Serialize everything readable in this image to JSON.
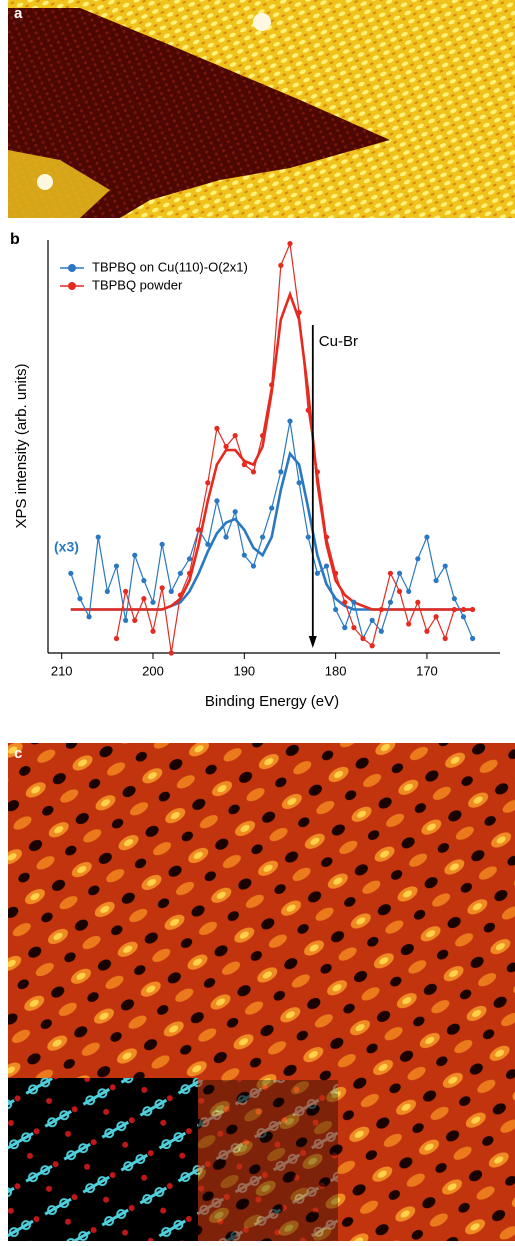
{
  "panel_labels": [
    "a",
    "b",
    "c"
  ],
  "chart_data": {
    "type": "line",
    "x_label": "Binding Energy (eV)",
    "y_label": "XPS intensity (arb. units)",
    "xlim": [
      211.5,
      162
    ],
    "ylim": [
      -12,
      102
    ],
    "xticks": [
      210,
      200,
      190,
      180,
      170
    ],
    "x": [
      209,
      208,
      207,
      206,
      205,
      204,
      203,
      202,
      201,
      200,
      199,
      198,
      197,
      196,
      195,
      194,
      193,
      192,
      191,
      190,
      189,
      188,
      187,
      186,
      185,
      184,
      183,
      182,
      181,
      180,
      179,
      178,
      177,
      176,
      175,
      174,
      173,
      172,
      171,
      170,
      169,
      168,
      167,
      166,
      165
    ],
    "series": [
      {
        "name": "TBPBQ on Cu(110)-O(2x1)",
        "color": "#2a78c2",
        "markers": true,
        "values": [
          10,
          3,
          -2,
          20,
          5,
          12,
          -3,
          15,
          8,
          2,
          18,
          5,
          10,
          14,
          22,
          18,
          30,
          20,
          27,
          15,
          12,
          20,
          28,
          38,
          52,
          35,
          20,
          10,
          12,
          0,
          -5,
          2,
          -8,
          -3,
          -6,
          2,
          10,
          5,
          14,
          20,
          8,
          12,
          3,
          -2,
          -8
        ]
      },
      {
        "name": "TBPBQ powder",
        "color": "#e52a20",
        "markers": true,
        "values": [
          null,
          null,
          null,
          null,
          null,
          -8,
          5,
          -3,
          3,
          -6,
          6,
          -12,
          4,
          10,
          22,
          35,
          50,
          45,
          48,
          40,
          38,
          48,
          62,
          95,
          101,
          82,
          55,
          38,
          20,
          10,
          2,
          -5,
          -8,
          -10,
          0,
          10,
          5,
          -4,
          2,
          -6,
          -2,
          -8,
          0,
          0,
          0
        ]
      },
      {
        "color": "#2a78c2",
        "markers": false,
        "values": [
          0,
          0,
          0,
          0,
          0,
          0,
          0,
          0,
          0,
          0,
          0,
          1,
          2,
          5,
          10,
          16,
          21,
          24,
          25,
          22,
          17,
          15,
          20,
          33,
          43,
          40,
          28,
          15,
          7,
          3,
          1,
          0,
          0,
          0,
          0,
          0,
          0,
          0,
          0,
          0,
          0,
          0,
          0,
          0,
          0
        ]
      },
      {
        "color": "#e52a20",
        "markers": false,
        "values": [
          0,
          0,
          0,
          0,
          0,
          0,
          0,
          0,
          0,
          0,
          0,
          1,
          3,
          8,
          18,
          30,
          40,
          44,
          44,
          41,
          40,
          45,
          60,
          80,
          87,
          80,
          60,
          35,
          18,
          8,
          4,
          2,
          1,
          0,
          0,
          0,
          0,
          0,
          0,
          0,
          0,
          0,
          0,
          0,
          0
        ]
      }
    ],
    "annotations": [
      {
        "text": "(x3)",
        "color": "#2a78c2"
      },
      {
        "text": "Cu-Br",
        "x": 182.5,
        "color": "#000000"
      }
    ]
  }
}
